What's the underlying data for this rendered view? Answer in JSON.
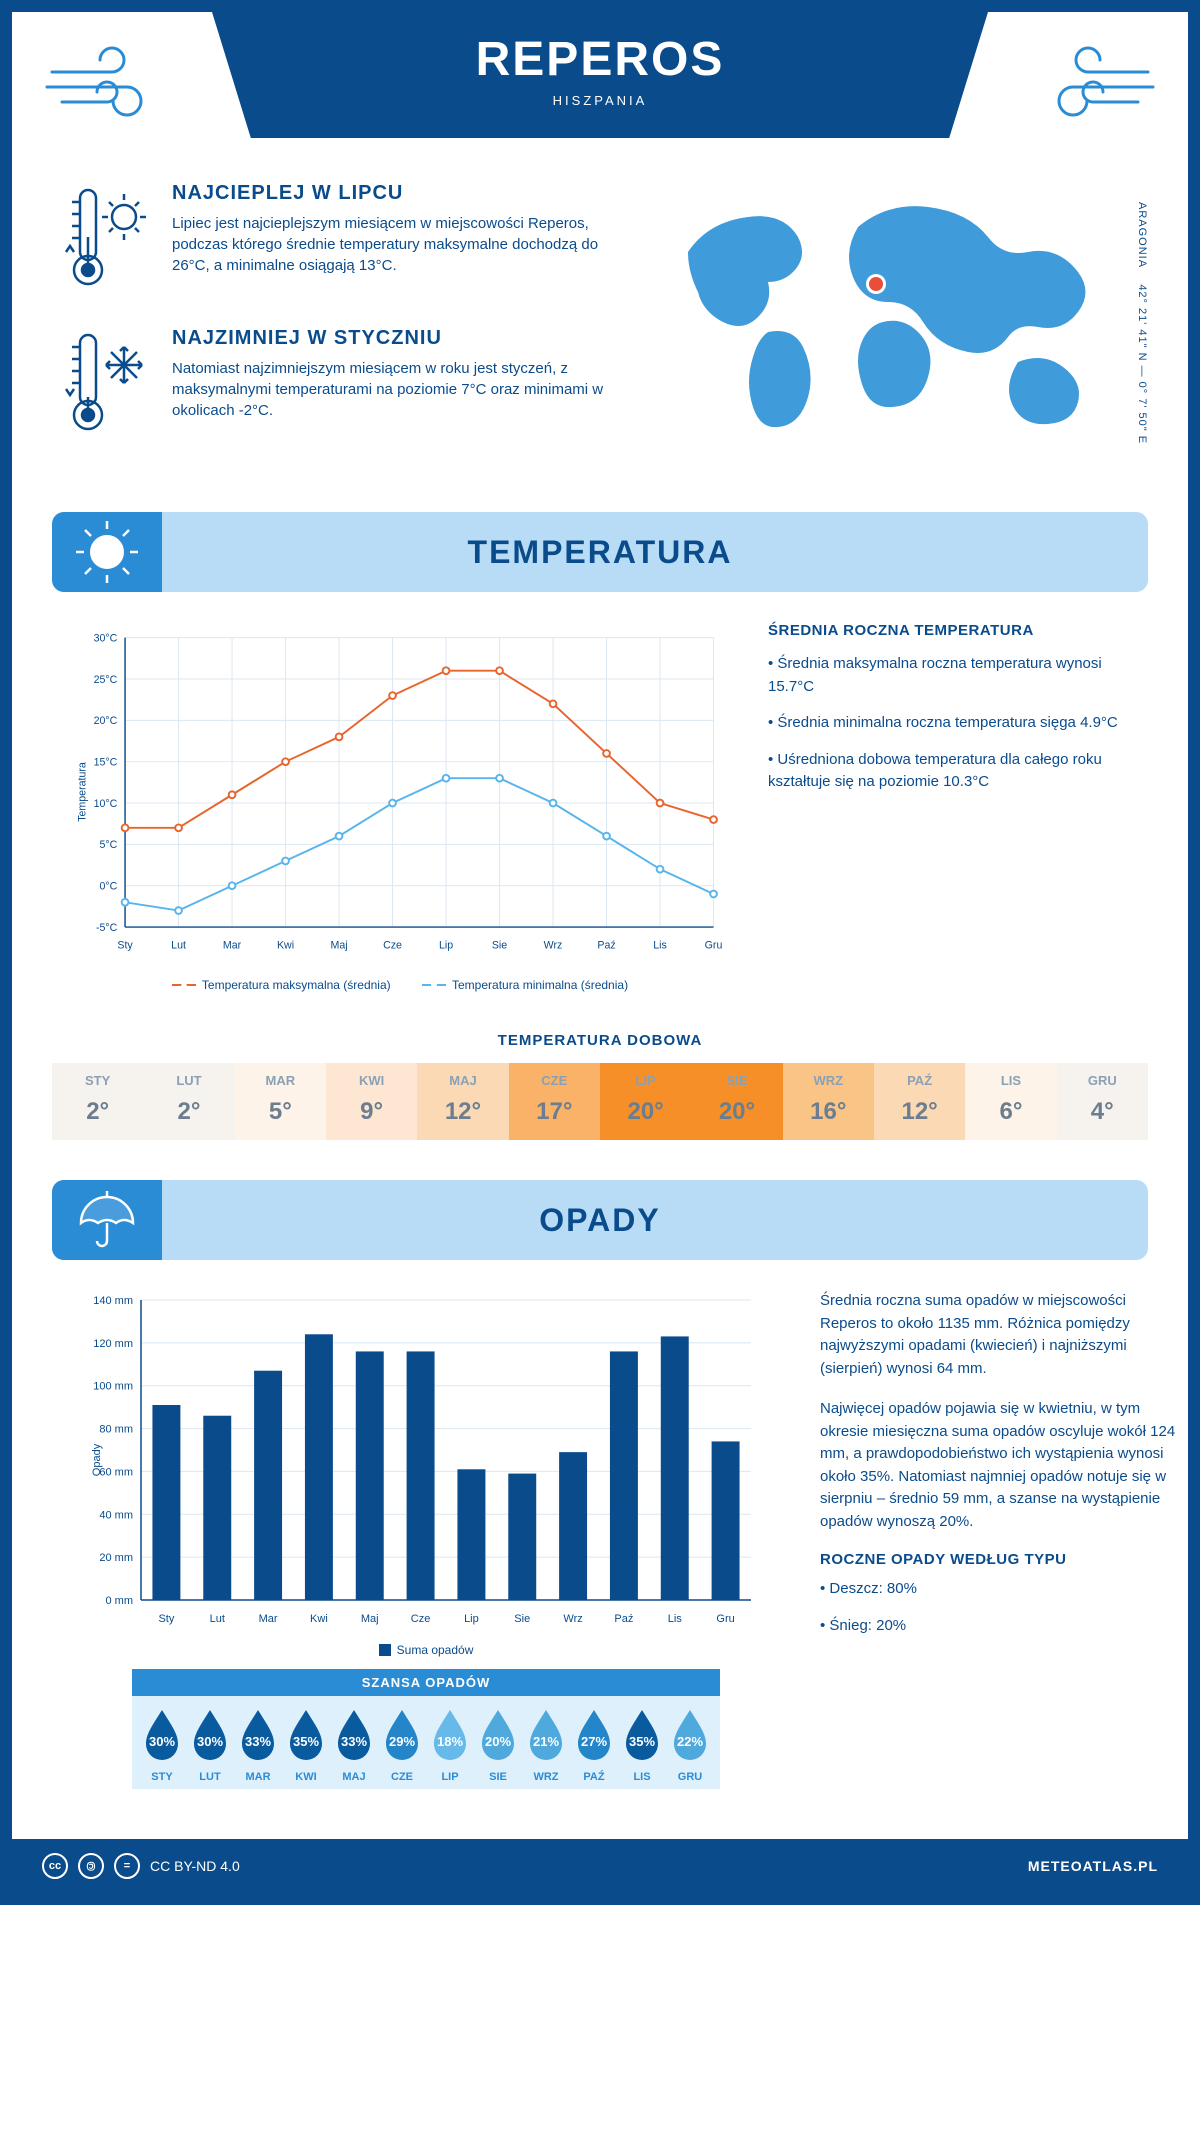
{
  "header": {
    "title": "REPEROS",
    "subtitle": "HISZPANIA"
  },
  "coords": {
    "region": "ARAGONIA",
    "lat": "42° 21' 41\" N",
    "lon": "0° 7' 50\" E"
  },
  "facts": {
    "hot": {
      "title": "NAJCIEPLEJ W LIPCU",
      "text": "Lipiec jest najcieplejszym miesiącem w miejscowości Reperos, podczas którego średnie temperatury maksymalne dochodzą do 26°C, a minimalne osiągają 13°C."
    },
    "cold": {
      "title": "NAJZIMNIEJ W STYCZNIU",
      "text": "Natomiast najzimniejszym miesiącem w roku jest styczeń, z maksymalnymi temperaturami na poziomie 7°C oraz minimami w okolicach -2°C."
    }
  },
  "sections": {
    "temp": "TEMPERATURA",
    "opady": "OPADY"
  },
  "temp_chart": {
    "type": "line",
    "months": [
      "Sty",
      "Lut",
      "Mar",
      "Kwi",
      "Maj",
      "Cze",
      "Lip",
      "Sie",
      "Wrz",
      "Paź",
      "Lis",
      "Gru"
    ],
    "series": {
      "max": {
        "label": "Temperatura maksymalna (średnia)",
        "color": "#e8642b",
        "values": [
          7,
          7,
          11,
          15,
          18,
          23,
          26,
          26,
          22,
          16,
          10,
          8
        ]
      },
      "min": {
        "label": "Temperatura minimalna (średnia)",
        "color": "#57b4ec",
        "values": [
          -2,
          -3,
          0,
          3,
          6,
          10,
          13,
          13,
          10,
          6,
          2,
          -1
        ]
      }
    },
    "y": {
      "min": -5,
      "max": 30,
      "step": 5,
      "label": "Temperatura"
    },
    "grid_color": "#dbe7f2",
    "axis_color": "#0a4b8c",
    "line_width": 2,
    "marker_r": 3.5,
    "font_size": 11
  },
  "temp_side": {
    "title": "ŚREDNIA ROCZNA TEMPERATURA",
    "points": [
      "• Średnia maksymalna roczna temperatura wynosi 15.7°C",
      "• Średnia minimalna roczna temperatura sięga 4.9°C",
      "• Uśredniona dobowa temperatura dla całego roku kształtuje się na poziomie 10.3°C"
    ]
  },
  "daily_temp": {
    "title": "TEMPERATURA DOBOWA",
    "months": [
      "STY",
      "LUT",
      "MAR",
      "KWI",
      "MAJ",
      "CZE",
      "LIP",
      "SIE",
      "WRZ",
      "PAŹ",
      "LIS",
      "GRU"
    ],
    "values": [
      "2°",
      "2°",
      "5°",
      "9°",
      "12°",
      "17°",
      "20°",
      "20°",
      "16°",
      "12°",
      "6°",
      "4°"
    ],
    "colors": [
      "#f6f2ee",
      "#f6f2ee",
      "#fdf3e9",
      "#fde7d2",
      "#fcd9b5",
      "#f9b267",
      "#f68f28",
      "#f68f28",
      "#fbc487",
      "#fcd9b5",
      "#fdf3e9",
      "#f6f2ee"
    ]
  },
  "precip_chart": {
    "type": "bar",
    "months": [
      "Sty",
      "Lut",
      "Mar",
      "Kwi",
      "Maj",
      "Cze",
      "Lip",
      "Sie",
      "Wrz",
      "Paź",
      "Lis",
      "Gru"
    ],
    "values": [
      91,
      86,
      107,
      124,
      116,
      116,
      61,
      59,
      69,
      116,
      123,
      74
    ],
    "bar_color": "#0a4b8c",
    "y": {
      "min": 0,
      "max": 140,
      "step": 20,
      "label": "Opady",
      "unit": "mm"
    },
    "grid_color": "#dbe7f2",
    "legend": "Suma opadów",
    "bar_width": 0.55,
    "font_size": 11
  },
  "precip_text": {
    "p1": "Średnia roczna suma opadów w miejscowości Reperos to około 1135 mm. Różnica pomiędzy najwyższymi opadami (kwiecień) i najniższymi (sierpień) wynosi 64 mm.",
    "p2": "Najwięcej opadów pojawia się w kwietniu, w tym okresie miesięczna suma opadów oscyluje wokół 124 mm, a prawdopodobieństwo ich wystąpienia wynosi około 35%. Natomiast najmniej opadów notuje się w sierpniu – średnio 59 mm, a szanse na wystąpienie opadów wynoszą 20%.",
    "types_title": "ROCZNE OPADY WEDŁUG TYPU",
    "types": [
      "• Deszcz: 80%",
      "• Śnieg: 20%"
    ]
  },
  "chance": {
    "title": "SZANSA OPADÓW",
    "months": [
      "STY",
      "LUT",
      "MAR",
      "KWI",
      "MAJ",
      "CZE",
      "LIP",
      "SIE",
      "WRZ",
      "PAŹ",
      "LIS",
      "GRU"
    ],
    "values": [
      "30%",
      "30%",
      "33%",
      "35%",
      "33%",
      "29%",
      "18%",
      "20%",
      "21%",
      "27%",
      "35%",
      "22%"
    ],
    "colors": [
      "#0a5a9e",
      "#0a5a9e",
      "#0a5a9e",
      "#0a5a9e",
      "#0a5a9e",
      "#2486c9",
      "#66b9e8",
      "#4fa9dd",
      "#4fa9dd",
      "#2486c9",
      "#0a5a9e",
      "#4fa9dd"
    ]
  },
  "footer": {
    "license": "CC BY-ND 4.0",
    "site": "METEOATLAS.PL"
  },
  "palette": {
    "primary": "#0a4b8c",
    "light": "#b8dcf5",
    "mid": "#2b8cd6",
    "map": "#3f9bd9",
    "marker": "#e94e3a"
  }
}
